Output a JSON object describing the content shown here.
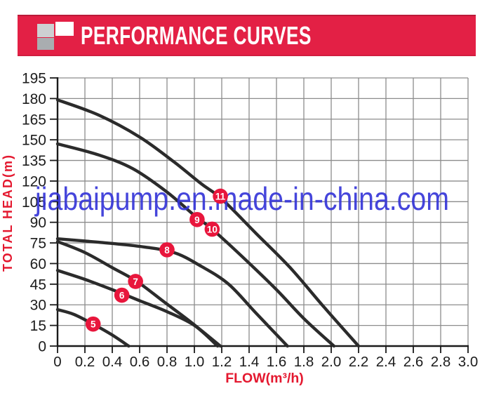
{
  "header": {
    "title": "PERFORMANCE CURVES"
  },
  "watermark": {
    "text": "jiabaipump.en.made-in-china.com"
  },
  "chart_data": {
    "type": "line",
    "title": "",
    "xlabel": "FLOW(m³/h)",
    "ylabel": "TOTAL HEAD(m)",
    "xlim": [
      0,
      3.0
    ],
    "ylim": [
      0,
      195
    ],
    "grid": true,
    "x_tick_labels": [
      "0",
      "0.2",
      "0.4",
      "0.6",
      "0.8",
      "1.0",
      "1.2",
      "1.4",
      "1.6",
      "1.8",
      "2.0",
      "2.2",
      "2.4",
      "2.6",
      "2.8",
      "3.0"
    ],
    "x_tick_values": [
      0,
      0.2,
      0.4,
      0.6,
      0.8,
      1.0,
      1.2,
      1.4,
      1.6,
      1.8,
      2.0,
      2.2,
      2.4,
      2.6,
      2.8,
      3.0
    ],
    "y_tick_labels": [
      "0",
      "15",
      "30",
      "45",
      "60",
      "75",
      "90",
      "105",
      "120",
      "135",
      "150",
      "165",
      "180",
      "195"
    ],
    "y_tick_values": [
      0,
      15,
      30,
      45,
      60,
      75,
      90,
      105,
      120,
      135,
      150,
      165,
      180,
      195
    ],
    "series": [
      {
        "name": "5",
        "points": [
          [
            0,
            26.5
          ],
          [
            0.12,
            23
          ],
          [
            0.26,
            16
          ],
          [
            0.4,
            8
          ],
          [
            0.52,
            0
          ]
        ]
      },
      {
        "name": "6",
        "points": [
          [
            0,
            55
          ],
          [
            0.2,
            48.5
          ],
          [
            0.4,
            41
          ],
          [
            0.6,
            33
          ],
          [
            0.8,
            25
          ],
          [
            1.0,
            15
          ],
          [
            1.17,
            0
          ]
        ]
      },
      {
        "name": "7",
        "points": [
          [
            0,
            76
          ],
          [
            0.2,
            68
          ],
          [
            0.4,
            57
          ],
          [
            0.58,
            47
          ],
          [
            0.78,
            32
          ],
          [
            0.98,
            17
          ],
          [
            1.19,
            0
          ]
        ]
      },
      {
        "name": "8",
        "points": [
          [
            0,
            78
          ],
          [
            0.3,
            75.5
          ],
          [
            0.6,
            72.5
          ],
          [
            0.85,
            68
          ],
          [
            1.05,
            58
          ],
          [
            1.25,
            45
          ],
          [
            1.45,
            24
          ],
          [
            1.68,
            0
          ]
        ]
      },
      {
        "name": "9-10",
        "points": [
          [
            0,
            147
          ],
          [
            0.3,
            139
          ],
          [
            0.55,
            129
          ],
          [
            0.8,
            112
          ],
          [
            1.0,
            95
          ],
          [
            1.13,
            85
          ],
          [
            1.35,
            65
          ],
          [
            1.6,
            41
          ],
          [
            1.8,
            20
          ],
          [
            2.02,
            0
          ]
        ]
      },
      {
        "name": "11",
        "points": [
          [
            0,
            179
          ],
          [
            0.3,
            168
          ],
          [
            0.6,
            152
          ],
          [
            0.85,
            134
          ],
          [
            1.05,
            118
          ],
          [
            1.2,
            107
          ],
          [
            1.45,
            82
          ],
          [
            1.7,
            57
          ],
          [
            1.95,
            28
          ],
          [
            2.2,
            0
          ]
        ]
      }
    ],
    "curve_labels": [
      {
        "text": "5",
        "flow": 0.26,
        "head": 16
      },
      {
        "text": "6",
        "flow": 0.47,
        "head": 37
      },
      {
        "text": "7",
        "flow": 0.57,
        "head": 47
      },
      {
        "text": "8",
        "flow": 0.8,
        "head": 70
      },
      {
        "text": "9",
        "flow": 1.02,
        "head": 92
      },
      {
        "text": "10",
        "flow": 1.13,
        "head": 85
      },
      {
        "text": "11",
        "flow": 1.19,
        "head": 109
      }
    ]
  },
  "colors": {
    "banner_red": "#e32045",
    "logo_square_light": "#cdd0d2",
    "logo_square_white": "#ffffff",
    "logo_square_dark": "#a9adb0",
    "axis_label_red": "#e4182f",
    "circle_red": "#e8163c",
    "curve_black": "#2b2b2b",
    "grid_gray": "#8c8c8c",
    "axis_black": "#1a1a1a",
    "tick_text": "#1c1c1c",
    "watermark_blue": "#3636d8"
  }
}
